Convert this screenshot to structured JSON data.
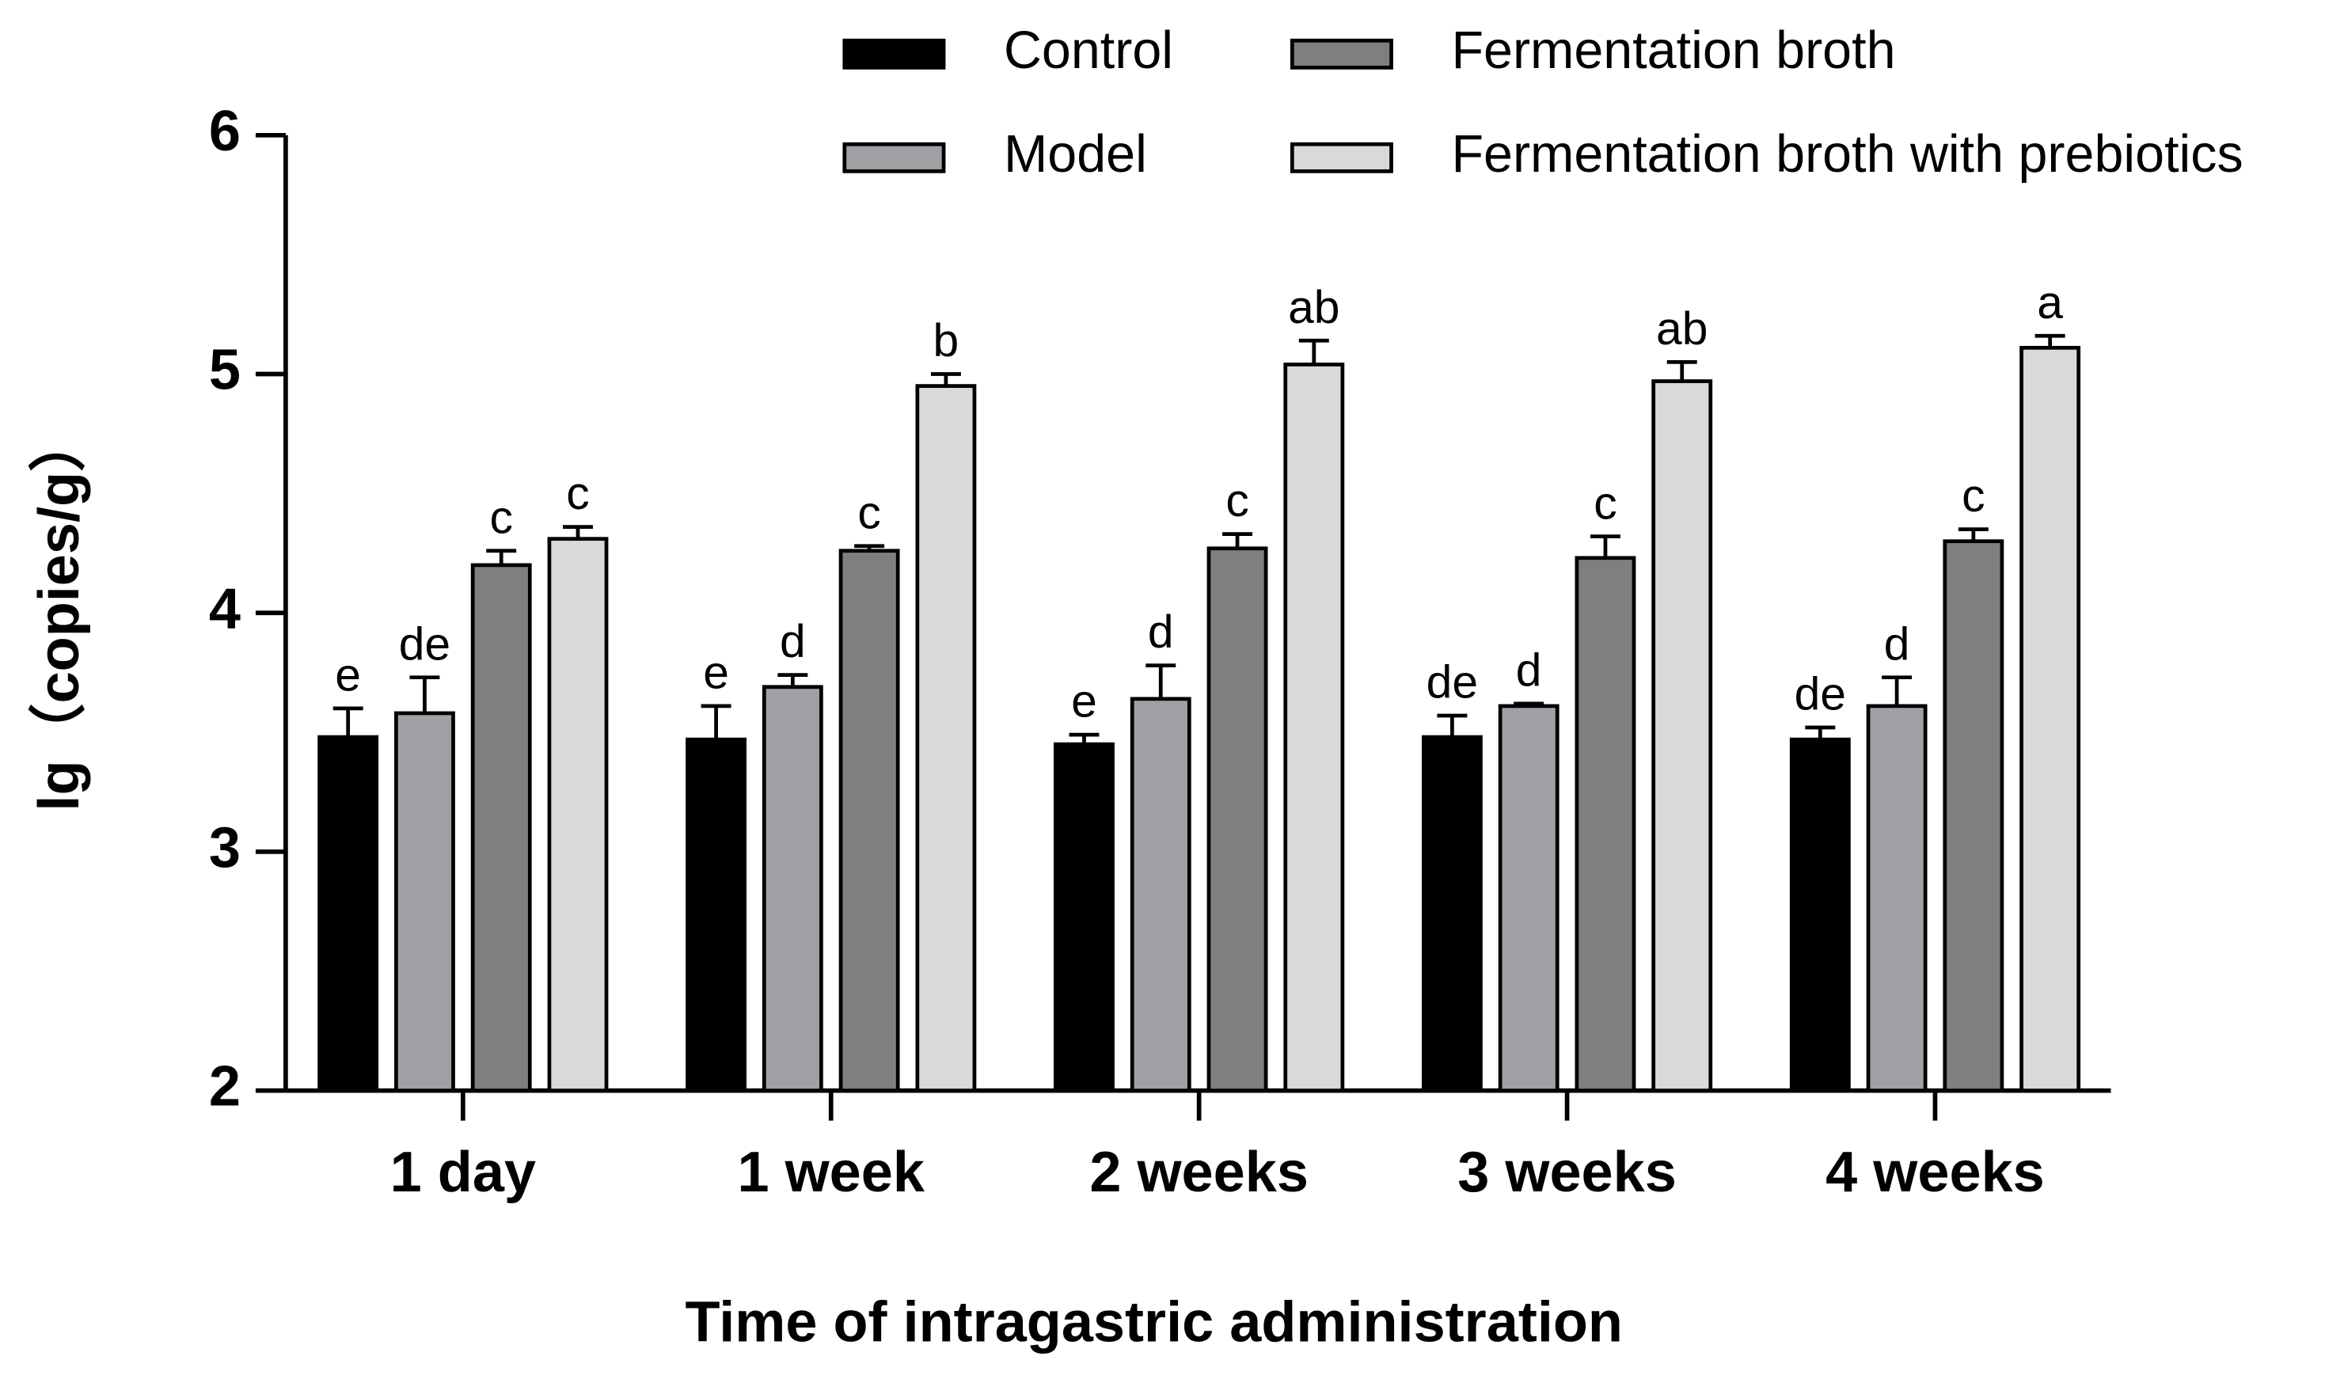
{
  "chart_data": {
    "type": "bar",
    "ylabel": "lg（copies/g）",
    "xlabel": "Time of intragastric administration",
    "categories": [
      "1 day",
      "1 week",
      "2 weeks",
      "3 weeks",
      "4 weeks"
    ],
    "ylim": [
      2,
      6
    ],
    "yticks": [
      2,
      3,
      4,
      5,
      6
    ],
    "series": [
      {
        "name": "Control",
        "color": "#000000",
        "values": [
          3.48,
          3.47,
          3.45,
          3.48,
          3.47
        ],
        "errors": [
          0.12,
          0.14,
          0.04,
          0.09,
          0.05
        ],
        "significance": [
          "e",
          "e",
          "e",
          "de",
          "de"
        ]
      },
      {
        "name": "Model",
        "color": "#a0a0a4",
        "values": [
          3.58,
          3.69,
          3.64,
          3.61,
          3.61
        ],
        "errors": [
          0.15,
          0.05,
          0.14,
          0.01,
          0.12
        ],
        "significance": [
          "de",
          "d",
          "d",
          "d",
          "d"
        ]
      },
      {
        "name": "Fermentation broth",
        "color": "#7f7f7f",
        "values": [
          4.2,
          4.26,
          4.27,
          4.23,
          4.3
        ],
        "errors": [
          0.06,
          0.02,
          0.06,
          0.09,
          0.05
        ],
        "significance": [
          "c",
          "c",
          "c",
          "c",
          "c"
        ]
      },
      {
        "name": "Fermentation broth with prebiotics",
        "color": "#d9d9d9",
        "values": [
          4.31,
          4.95,
          5.04,
          4.97,
          5.11
        ],
        "errors": [
          0.05,
          0.05,
          0.1,
          0.08,
          0.05
        ],
        "significance": [
          "c",
          "b",
          "ab",
          "ab",
          "a"
        ]
      }
    ]
  }
}
